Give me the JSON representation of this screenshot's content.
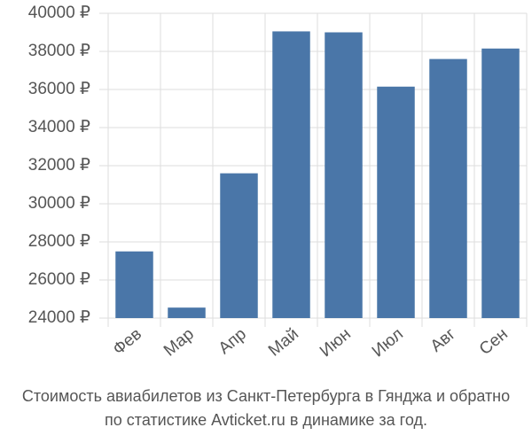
{
  "chart_data": {
    "type": "bar",
    "title": "Стоимость авиабилетов из Санкт-Петербурга в Гянджа и обратно",
    "subtitle": "по статистике Avticket.ru в динамике за год.",
    "categories": [
      "Фев",
      "Мар",
      "Апр",
      "Май",
      "Июн",
      "Июл",
      "Авг",
      "Сен"
    ],
    "values": [
      27500,
      24550,
      31600,
      39050,
      39000,
      36150,
      37600,
      38150
    ],
    "color": "#4a76a8",
    "ylim": [
      24000,
      40000
    ],
    "yticks": [
      {
        "value": 24000,
        "label": "24000 ₽"
      },
      {
        "value": 26000,
        "label": "26000 ₽"
      },
      {
        "value": 28000,
        "label": "28000 ₽"
      },
      {
        "value": 30000,
        "label": "30000 ₽"
      },
      {
        "value": 32000,
        "label": "32000 ₽"
      },
      {
        "value": 34000,
        "label": "34000 ₽"
      },
      {
        "value": 36000,
        "label": "36000 ₽"
      },
      {
        "value": 38000,
        "label": "38000 ₽"
      },
      {
        "value": 40000,
        "label": "40000 ₽"
      }
    ],
    "grid": true
  }
}
